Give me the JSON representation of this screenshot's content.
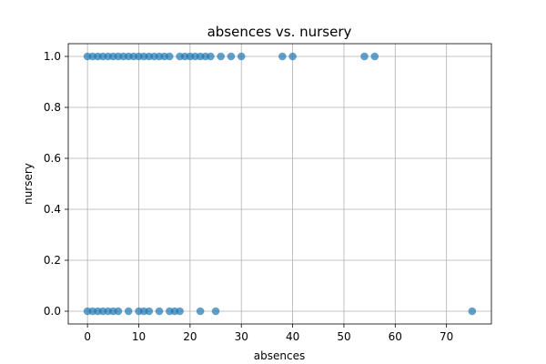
{
  "chart_data": {
    "type": "scatter",
    "title": "absences vs. nursery",
    "xlabel": "absences",
    "ylabel": "nursery",
    "xlim": [
      -3.75,
      78.75
    ],
    "ylim": [
      -0.05,
      1.05
    ],
    "xticks": [
      0,
      10,
      20,
      30,
      40,
      50,
      60,
      70
    ],
    "xtick_labels": [
      "0",
      "10",
      "20",
      "30",
      "40",
      "50",
      "60",
      "70"
    ],
    "yticks": [
      0.0,
      0.2,
      0.4,
      0.6,
      0.8,
      1.0
    ],
    "ytick_labels": [
      "0.0",
      "0.2",
      "0.4",
      "0.6",
      "0.8",
      "1.0"
    ],
    "grid": true,
    "marker_color": "#1f77b4",
    "series": [
      {
        "points": [
          [
            0,
            1
          ],
          [
            1,
            1
          ],
          [
            2,
            1
          ],
          [
            3,
            1
          ],
          [
            4,
            1
          ],
          [
            5,
            1
          ],
          [
            6,
            1
          ],
          [
            7,
            1
          ],
          [
            8,
            1
          ],
          [
            9,
            1
          ],
          [
            10,
            1
          ],
          [
            11,
            1
          ],
          [
            12,
            1
          ],
          [
            13,
            1
          ],
          [
            14,
            1
          ],
          [
            15,
            1
          ],
          [
            16,
            1
          ],
          [
            18,
            1
          ],
          [
            19,
            1
          ],
          [
            20,
            1
          ],
          [
            21,
            1
          ],
          [
            22,
            1
          ],
          [
            23,
            1
          ],
          [
            24,
            1
          ],
          [
            26,
            1
          ],
          [
            28,
            1
          ],
          [
            30,
            1
          ],
          [
            38,
            1
          ],
          [
            40,
            1
          ],
          [
            54,
            1
          ],
          [
            56,
            1
          ],
          [
            0,
            0
          ],
          [
            1,
            0
          ],
          [
            2,
            0
          ],
          [
            3,
            0
          ],
          [
            4,
            0
          ],
          [
            5,
            0
          ],
          [
            6,
            0
          ],
          [
            8,
            0
          ],
          [
            10,
            0
          ],
          [
            11,
            0
          ],
          [
            12,
            0
          ],
          [
            14,
            0
          ],
          [
            16,
            0
          ],
          [
            17,
            0
          ],
          [
            18,
            0
          ],
          [
            22,
            0
          ],
          [
            25,
            0
          ],
          [
            75,
            0
          ]
        ]
      }
    ]
  }
}
